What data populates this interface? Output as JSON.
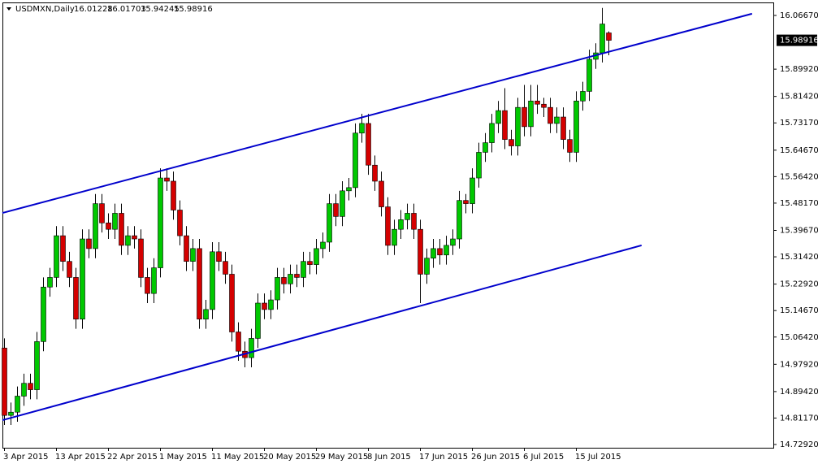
{
  "chart_data": {
    "type": "candlestick",
    "symbol": "USDMXN,Daily",
    "categories": [
      "3 Apr 2015",
      null,
      null,
      null,
      null,
      null,
      null,
      null,
      "13 Apr 2015",
      null,
      null,
      null,
      null,
      null,
      null,
      null,
      "22 Apr 2015",
      null,
      null,
      null,
      null,
      null,
      null,
      null,
      "1 May 2015",
      null,
      null,
      null,
      null,
      null,
      null,
      null,
      "11 May 2015",
      null,
      null,
      null,
      null,
      null,
      null,
      null,
      "20 May 2015",
      null,
      null,
      null,
      null,
      null,
      null,
      null,
      "29 May 2015",
      null,
      null,
      null,
      null,
      null,
      null,
      null,
      "8 Jun 2015",
      null,
      null,
      null,
      null,
      null,
      null,
      null,
      "17 Jun 2015",
      null,
      null,
      null,
      null,
      null,
      null,
      null,
      "26 Jun 2015",
      null,
      null,
      null,
      null,
      null,
      null,
      null,
      "6 Jul 2015",
      null,
      null,
      null,
      null,
      null,
      null,
      null,
      "15 Jul 2015",
      null,
      null,
      null,
      null,
      null
    ],
    "open": [
      15.03,
      14.82,
      14.83,
      14.88,
      14.92,
      14.9,
      15.05,
      15.22,
      15.25,
      15.38,
      15.3,
      15.25,
      15.12,
      15.37,
      15.34,
      15.48,
      15.42,
      15.4,
      15.45,
      15.35,
      15.38,
      15.37,
      15.25,
      15.2,
      15.28,
      15.56,
      15.55,
      15.46,
      15.38,
      15.3,
      15.34,
      15.12,
      15.15,
      15.33,
      15.3,
      15.26,
      15.08,
      15.02,
      15.0,
      15.06,
      15.17,
      15.15,
      15.18,
      15.25,
      15.23,
      15.26,
      15.25,
      15.3,
      15.29,
      15.34,
      15.36,
      15.48,
      15.44,
      15.52,
      15.53,
      15.7,
      15.73,
      15.6,
      15.55,
      15.47,
      15.35,
      15.4,
      15.43,
      15.45,
      15.4,
      15.26,
      15.31,
      15.34,
      15.32,
      15.35,
      15.37,
      15.49,
      15.48,
      15.56,
      15.64,
      15.67,
      15.73,
      15.77,
      15.68,
      15.66,
      15.78,
      15.72,
      15.8,
      15.79,
      15.78,
      15.73,
      15.75,
      15.68,
      15.64,
      15.8,
      15.83,
      15.93,
      15.95,
      16.01228
    ],
    "high": [
      15.06,
      14.86,
      14.91,
      14.95,
      14.95,
      15.08,
      15.25,
      15.28,
      15.41,
      15.41,
      15.33,
      15.28,
      15.4,
      15.4,
      15.51,
      15.51,
      15.45,
      15.48,
      15.48,
      15.41,
      15.41,
      15.4,
      15.28,
      15.31,
      15.59,
      15.59,
      15.58,
      15.49,
      15.41,
      15.37,
      15.37,
      15.18,
      15.36,
      15.36,
      15.33,
      15.29,
      15.11,
      15.05,
      15.09,
      15.2,
      15.2,
      15.21,
      15.28,
      15.28,
      15.29,
      15.29,
      15.33,
      15.33,
      15.37,
      15.39,
      15.51,
      15.51,
      15.55,
      15.56,
      15.73,
      15.76,
      15.76,
      15.63,
      15.58,
      15.5,
      15.43,
      15.46,
      15.48,
      15.48,
      15.43,
      15.34,
      15.37,
      15.37,
      15.38,
      15.4,
      15.52,
      15.51,
      15.59,
      15.67,
      15.7,
      15.76,
      15.8,
      15.84,
      15.71,
      15.81,
      15.85,
      15.85,
      15.85,
      15.81,
      15.81,
      15.78,
      15.78,
      15.71,
      15.83,
      15.86,
      15.96,
      15.98,
      16.09,
      16.01703
    ],
    "low": [
      14.79,
      14.79,
      14.8,
      14.85,
      14.87,
      14.87,
      15.02,
      15.19,
      15.22,
      15.27,
      15.22,
      15.09,
      15.09,
      15.31,
      15.31,
      15.39,
      15.37,
      15.37,
      15.32,
      15.32,
      15.34,
      15.22,
      15.17,
      15.17,
      15.25,
      15.52,
      15.43,
      15.35,
      15.27,
      15.27,
      15.09,
      15.09,
      15.12,
      15.27,
      15.23,
      15.05,
      14.99,
      14.97,
      14.97,
      15.03,
      15.12,
      15.12,
      15.15,
      15.2,
      15.2,
      15.22,
      15.22,
      15.26,
      15.26,
      15.31,
      15.33,
      15.41,
      15.41,
      15.49,
      15.5,
      15.67,
      15.57,
      15.52,
      15.44,
      15.32,
      15.32,
      15.37,
      15.4,
      15.37,
      15.17,
      15.23,
      15.28,
      15.29,
      15.29,
      15.32,
      15.34,
      15.45,
      15.45,
      15.53,
      15.61,
      15.64,
      15.7,
      15.65,
      15.63,
      15.63,
      15.69,
      15.69,
      15.76,
      15.75,
      15.7,
      15.7,
      15.65,
      15.61,
      15.61,
      15.77,
      15.8,
      15.9,
      15.92,
      15.94245
    ],
    "close": [
      14.82,
      14.83,
      14.88,
      14.92,
      14.9,
      15.05,
      15.22,
      15.25,
      15.38,
      15.3,
      15.25,
      15.12,
      15.37,
      15.34,
      15.48,
      15.42,
      15.4,
      15.45,
      15.35,
      15.38,
      15.37,
      15.25,
      15.2,
      15.28,
      15.56,
      15.55,
      15.46,
      15.38,
      15.3,
      15.34,
      15.12,
      15.15,
      15.33,
      15.3,
      15.26,
      15.08,
      15.02,
      15.0,
      15.06,
      15.17,
      15.15,
      15.18,
      15.25,
      15.23,
      15.26,
      15.25,
      15.3,
      15.29,
      15.34,
      15.36,
      15.48,
      15.44,
      15.52,
      15.53,
      15.7,
      15.73,
      15.6,
      15.55,
      15.47,
      15.35,
      15.4,
      15.43,
      15.45,
      15.4,
      15.26,
      15.31,
      15.34,
      15.32,
      15.35,
      15.37,
      15.49,
      15.48,
      15.56,
      15.64,
      15.67,
      15.73,
      15.77,
      15.68,
      15.66,
      15.78,
      15.72,
      15.8,
      15.79,
      15.78,
      15.73,
      15.75,
      15.68,
      15.64,
      15.8,
      15.83,
      15.93,
      15.95,
      16.04,
      15.98916
    ],
    "up_color": "#00c800",
    "down_color": "#d40000",
    "ylim": [
      14.7191,
      16.1072
    ],
    "yticks": [
      {
        "value": 16.0667,
        "label": "16.06670"
      },
      {
        "value": 15.8992,
        "label": "15.89920"
      },
      {
        "value": 15.8142,
        "label": "15.81420"
      },
      {
        "value": 15.7317,
        "label": "15.73170"
      },
      {
        "value": 15.6467,
        "label": "15.64670"
      },
      {
        "value": 15.5642,
        "label": "15.56420"
      },
      {
        "value": 15.4817,
        "label": "15.48170"
      },
      {
        "value": 15.3967,
        "label": "15.39670"
      },
      {
        "value": 15.3142,
        "label": "15.31420"
      },
      {
        "value": 15.2292,
        "label": "15.22920"
      },
      {
        "value": 15.1467,
        "label": "15.14670"
      },
      {
        "value": 15.0642,
        "label": "15.06420"
      },
      {
        "value": 14.9792,
        "label": "14.97920"
      },
      {
        "value": 14.8942,
        "label": "14.89420"
      },
      {
        "value": 14.8117,
        "label": "14.81170"
      },
      {
        "value": 14.7292,
        "label": "14.72920"
      }
    ],
    "trendlines": [
      {
        "color": "#0000cc",
        "x": [
          -0.25,
          115.1
        ],
        "y": [
          15.451,
          16.072
        ]
      },
      {
        "color": "#0000cc",
        "x": [
          -0.25,
          98.1
        ],
        "y": [
          14.805,
          15.35
        ]
      }
    ],
    "grid": false
  }
}
